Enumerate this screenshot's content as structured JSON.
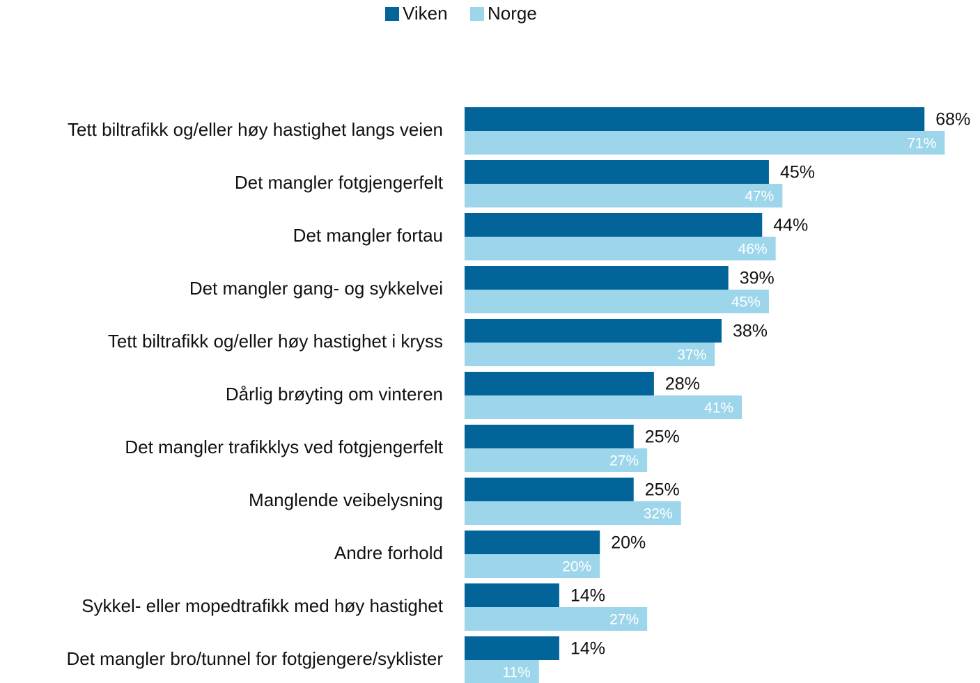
{
  "chart_data": {
    "type": "hbar",
    "categories": [
      "Tett biltrafikk og/eller høy hastighet langs veien",
      "Det mangler fotgjengerfelt",
      "Det mangler fortau",
      "Det mangler gang- og sykkelvei",
      "Tett biltrafikk og/eller høy hastighet i kryss",
      "Dårlig brøyting om vinteren",
      "Det mangler trafikklys ved fotgjengerfelt",
      "Manglende veibelysning",
      "Andre forhold",
      "Sykkel- eller mopedtrafikk med høy hastighet",
      "Det mangler bro/tunnel for fotgjengere/syklister"
    ],
    "series": [
      {
        "name": "Viken",
        "color": "#03649a",
        "values": [
          68,
          45,
          44,
          39,
          38,
          28,
          25,
          25,
          20,
          14,
          14
        ],
        "value_labels": [
          "68%",
          "45%",
          "44%",
          "39%",
          "38%",
          "28%",
          "25%",
          "25%",
          "20%",
          "14%",
          "14%"
        ]
      },
      {
        "name": "Norge",
        "color": "#9dd6eb",
        "values": [
          71,
          47,
          46,
          45,
          37,
          41,
          27,
          32,
          20,
          27,
          11
        ],
        "value_labels": [
          "71%",
          "47%",
          "46%",
          "45%",
          "37%",
          "41%",
          "27%",
          "32%",
          "20%",
          "27%",
          "11%"
        ]
      }
    ],
    "legend": "top"
  }
}
